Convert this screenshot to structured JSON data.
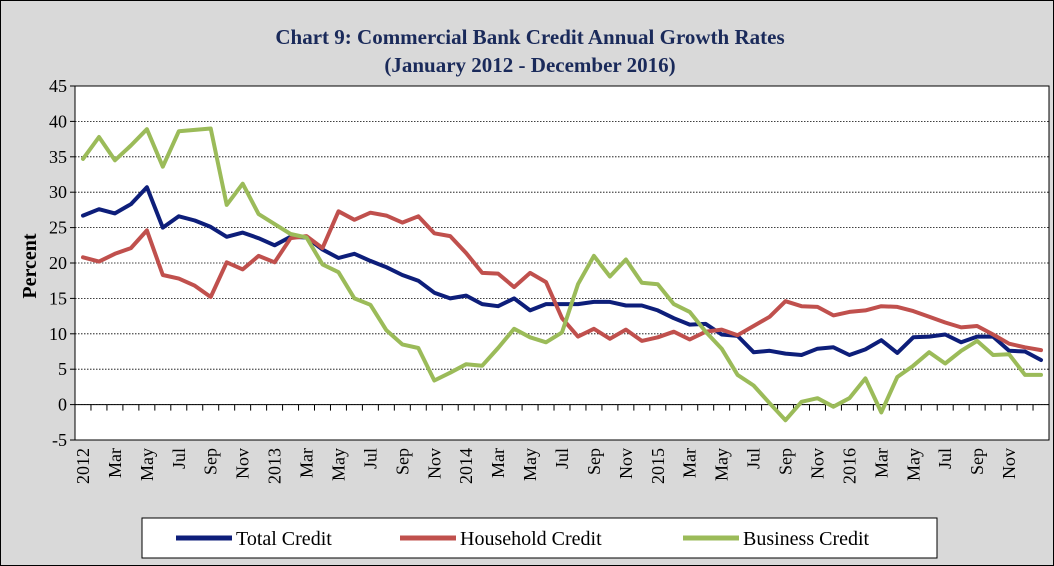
{
  "chart_data": {
    "type": "line",
    "title_line1": "Chart 9: Commercial Bank Credit Annual Growth Rates",
    "title_line2": "(January 2012 - December 2016)",
    "xlabel": "",
    "ylabel": "Percent",
    "ylim": [
      -5,
      45
    ],
    "yticks": [
      -5,
      0,
      5,
      10,
      15,
      20,
      25,
      30,
      35,
      40,
      45
    ],
    "grid": "horizontal dotted",
    "legend_position": "bottom",
    "x_tick_labels": [
      "2012",
      "Mar",
      "May",
      "Jul",
      "Sep",
      "Nov",
      "2013",
      "Mar",
      "May",
      "Jul",
      "Sep",
      "Nov",
      "2014",
      "Mar",
      "May",
      "Jul",
      "Sep",
      "Nov",
      "2015",
      "Mar",
      "May",
      "Jul",
      "Sep",
      "Nov",
      "2016",
      "Mar",
      "May",
      "Jul",
      "Sep",
      "Nov"
    ],
    "x_start": "Jan 2012",
    "x_end": "Dec 2016",
    "colors": {
      "background": "#d9d9d9",
      "plot_area": "#ffffff",
      "title": "#1a2a5a"
    },
    "series": [
      {
        "name": "Total Credit",
        "color": "#0d1e7a",
        "values": [
          26.7,
          27.6,
          27.0,
          28.3,
          30.7,
          25.0,
          26.6,
          26.0,
          25.1,
          23.7,
          24.3,
          23.5,
          22.5,
          23.7,
          23.6,
          21.9,
          20.7,
          21.3,
          20.3,
          19.4,
          18.3,
          17.5,
          15.8,
          15.0,
          15.4,
          14.2,
          13.9,
          15.0,
          13.3,
          14.2,
          14.2,
          14.2,
          14.5,
          14.5,
          14.0,
          14.0,
          13.3,
          12.2,
          11.3,
          11.4,
          9.9,
          9.7,
          7.4,
          7.6,
          7.2,
          7.0,
          7.9,
          8.1,
          7.0,
          7.8,
          9.1,
          7.3,
          9.5,
          9.6,
          9.9,
          8.8,
          9.6,
          9.6,
          7.6,
          7.5,
          6.3
        ]
      },
      {
        "name": "Household Credit",
        "color": "#c0504d",
        "values": [
          20.8,
          20.2,
          21.3,
          22.1,
          24.6,
          18.3,
          17.8,
          16.8,
          15.2,
          20.1,
          19.1,
          21.0,
          20.1,
          23.5,
          23.8,
          22.1,
          27.3,
          26.1,
          27.1,
          26.7,
          25.7,
          26.6,
          24.2,
          23.8,
          21.4,
          18.6,
          18.5,
          16.6,
          18.6,
          17.3,
          12.2,
          9.6,
          10.7,
          9.3,
          10.6,
          9.0,
          9.5,
          10.3,
          9.2,
          10.3,
          10.6,
          9.8,
          11.1,
          12.4,
          14.6,
          13.9,
          13.8,
          12.6,
          13.1,
          13.3,
          13.9,
          13.8,
          13.2,
          12.4,
          11.6,
          10.9,
          11.1,
          9.9,
          8.6,
          8.1,
          7.7
        ]
      },
      {
        "name": "Business Credit",
        "color": "#9bbb59",
        "values": [
          34.7,
          37.8,
          34.5,
          36.6,
          38.9,
          33.6,
          38.6,
          38.8,
          39.0,
          28.2,
          31.2,
          26.9,
          25.5,
          24.1,
          23.6,
          19.8,
          18.7,
          15.0,
          14.1,
          10.5,
          8.5,
          8.0,
          3.4,
          4.5,
          5.7,
          5.5,
          8.0,
          10.7,
          9.5,
          8.8,
          10.2,
          17.0,
          21.0,
          18.1,
          20.5,
          17.2,
          17.0,
          14.2,
          13.1,
          10.3,
          7.9,
          4.2,
          2.7,
          0.2,
          -2.2,
          0.4,
          0.9,
          -0.3,
          0.9,
          3.7,
          -1.1,
          3.9,
          5.5,
          7.4,
          5.8,
          7.6,
          9.0,
          7.0,
          7.1,
          4.2,
          4.2
        ]
      }
    ]
  }
}
